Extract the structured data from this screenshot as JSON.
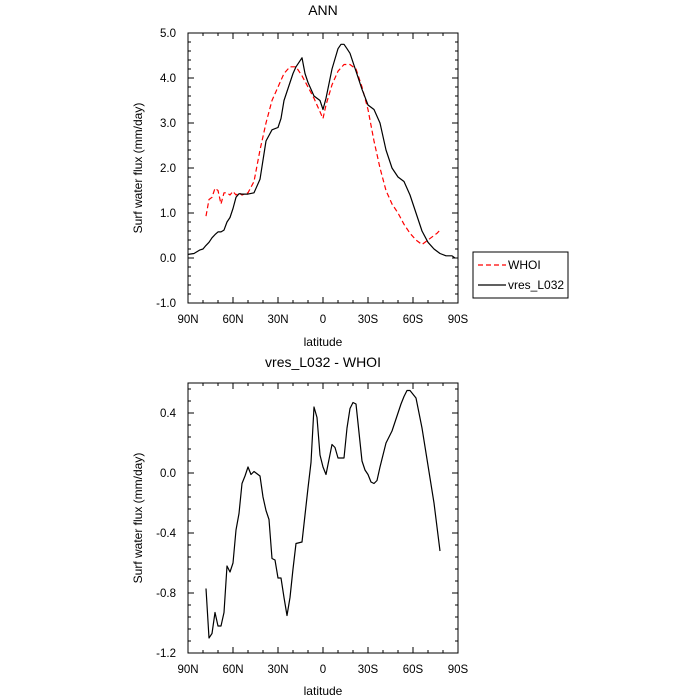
{
  "chart_data": [
    {
      "type": "line",
      "title": "ANN",
      "xlabel": "latitude",
      "ylabel": "Surf water flux (mm/day)",
      "xlim": [
        90,
        -90
      ],
      "ylim": [
        -1.0,
        5.0
      ],
      "xticks": [
        90,
        60,
        30,
        0,
        -30,
        -60,
        -90
      ],
      "xtick_labels": [
        "90N",
        "60N",
        "30N",
        "0",
        "30S",
        "60S",
        "90S"
      ],
      "yticks": [
        -1.0,
        0.0,
        1.0,
        2.0,
        3.0,
        4.0,
        5.0
      ],
      "ytick_labels": [
        "-1.0",
        "0.0",
        "1.0",
        "2.0",
        "3.0",
        "4.0",
        "5.0"
      ],
      "legend_position": "right-bottom",
      "series": [
        {
          "name": "WHOI",
          "color": "#ff0000",
          "dash": "dashed",
          "x": [
            78,
            76,
            74,
            72,
            70,
            68,
            66,
            64,
            62,
            60,
            58,
            56,
            54,
            50,
            46,
            42,
            38,
            34,
            30,
            26,
            22,
            18,
            14,
            10,
            6,
            2,
            0,
            -2,
            -6,
            -10,
            -14,
            -18,
            -22,
            -26,
            -30,
            -34,
            -38,
            -42,
            -46,
            -50,
            -54,
            -58,
            -62,
            -66,
            -70,
            -74,
            -76,
            -78
          ],
          "y": [
            0.93,
            1.3,
            1.35,
            1.55,
            1.5,
            1.2,
            1.45,
            1.45,
            1.4,
            1.48,
            1.4,
            1.45,
            1.4,
            1.45,
            1.7,
            2.4,
            3.0,
            3.5,
            3.8,
            4.1,
            4.25,
            4.25,
            4.05,
            3.8,
            3.55,
            3.25,
            3.1,
            3.4,
            3.85,
            4.15,
            4.3,
            4.3,
            4.2,
            3.8,
            3.3,
            2.6,
            2.0,
            1.5,
            1.2,
            1.0,
            0.75,
            0.55,
            0.4,
            0.3,
            0.4,
            0.5,
            0.55,
            0.62
          ]
        },
        {
          "name": "vres_L032",
          "color": "#000000",
          "dash": "solid",
          "x": [
            90,
            86,
            82,
            80,
            78,
            76,
            74,
            72,
            70,
            68,
            66,
            64,
            62,
            60,
            58,
            56,
            54,
            50,
            46,
            42,
            38,
            34,
            30,
            28,
            26,
            24,
            22,
            20,
            18,
            14,
            12,
            10,
            6,
            2,
            0,
            -2,
            -6,
            -10,
            -12,
            -14,
            -16,
            -18,
            -20,
            -22,
            -26,
            -30,
            -34,
            -38,
            -42,
            -46,
            -50,
            -54,
            -58,
            -62,
            -66,
            -70,
            -74,
            -78,
            -82,
            -86,
            -88
          ],
          "y": [
            0.08,
            0.1,
            0.18,
            0.2,
            0.28,
            0.35,
            0.45,
            0.52,
            0.58,
            0.58,
            0.62,
            0.8,
            0.9,
            1.1,
            1.35,
            1.43,
            1.42,
            1.42,
            1.45,
            1.75,
            2.6,
            2.85,
            2.9,
            3.1,
            3.5,
            3.7,
            3.9,
            4.1,
            4.25,
            4.45,
            4.1,
            3.9,
            3.6,
            3.5,
            3.3,
            3.55,
            4.2,
            4.65,
            4.75,
            4.75,
            4.65,
            4.55,
            4.35,
            4.15,
            3.75,
            3.4,
            3.3,
            3.0,
            2.4,
            2.0,
            1.8,
            1.7,
            1.4,
            1.0,
            0.6,
            0.35,
            0.2,
            0.1,
            0.05,
            0.05,
            0.0
          ]
        }
      ]
    },
    {
      "type": "line",
      "title": "vres_L032 - WHOI",
      "xlabel": "latitude",
      "ylabel": "Surf water flux (mm/day)",
      "xlim": [
        90,
        -90
      ],
      "ylim": [
        -1.2,
        0.6
      ],
      "xticks": [
        90,
        60,
        30,
        0,
        -30,
        -60,
        -90
      ],
      "xtick_labels": [
        "90N",
        "60N",
        "30N",
        "0",
        "30S",
        "60S",
        "90S"
      ],
      "yticks": [
        -1.2,
        -0.8,
        -0.4,
        0.0,
        0.4
      ],
      "ytick_labels": [
        "-1.2",
        "-0.8",
        "-0.4",
        "0.0",
        "0.4"
      ],
      "series": [
        {
          "color": "#000000",
          "dash": "solid",
          "x": [
            78,
            76,
            74,
            72,
            70,
            68,
            66,
            64,
            62,
            60,
            58,
            56,
            54,
            52,
            50,
            48,
            46,
            42,
            40,
            38,
            36,
            34,
            32,
            30,
            28,
            26,
            24,
            22,
            20,
            18,
            14,
            12,
            10,
            8,
            6,
            4,
            2,
            0,
            -2,
            -6,
            -8,
            -10,
            -14,
            -16,
            -18,
            -20,
            -22,
            -24,
            -26,
            -28,
            -30,
            -32,
            -34,
            -36,
            -38,
            -42,
            -46,
            -50,
            -52,
            -54,
            -56,
            -58,
            -62,
            -66,
            -70,
            -74,
            -78
          ],
          "y": [
            -0.77,
            -1.1,
            -1.07,
            -0.93,
            -1.02,
            -1.02,
            -0.93,
            -0.62,
            -0.66,
            -0.6,
            -0.38,
            -0.27,
            -0.07,
            -0.02,
            0.04,
            -0.01,
            0.01,
            -0.02,
            -0.16,
            -0.25,
            -0.31,
            -0.57,
            -0.58,
            -0.7,
            -0.7,
            -0.83,
            -0.95,
            -0.83,
            -0.64,
            -0.47,
            -0.46,
            -0.28,
            -0.1,
            0.07,
            0.44,
            0.37,
            0.12,
            0.04,
            -0.01,
            0.19,
            0.17,
            0.1,
            0.1,
            0.3,
            0.43,
            0.47,
            0.46,
            0.27,
            0.08,
            0.02,
            -0.01,
            -0.06,
            -0.07,
            -0.05,
            0.04,
            0.2,
            0.28,
            0.4,
            0.46,
            0.51,
            0.55,
            0.55,
            0.5,
            0.3,
            0.05,
            -0.2,
            -0.52
          ]
        }
      ]
    }
  ]
}
